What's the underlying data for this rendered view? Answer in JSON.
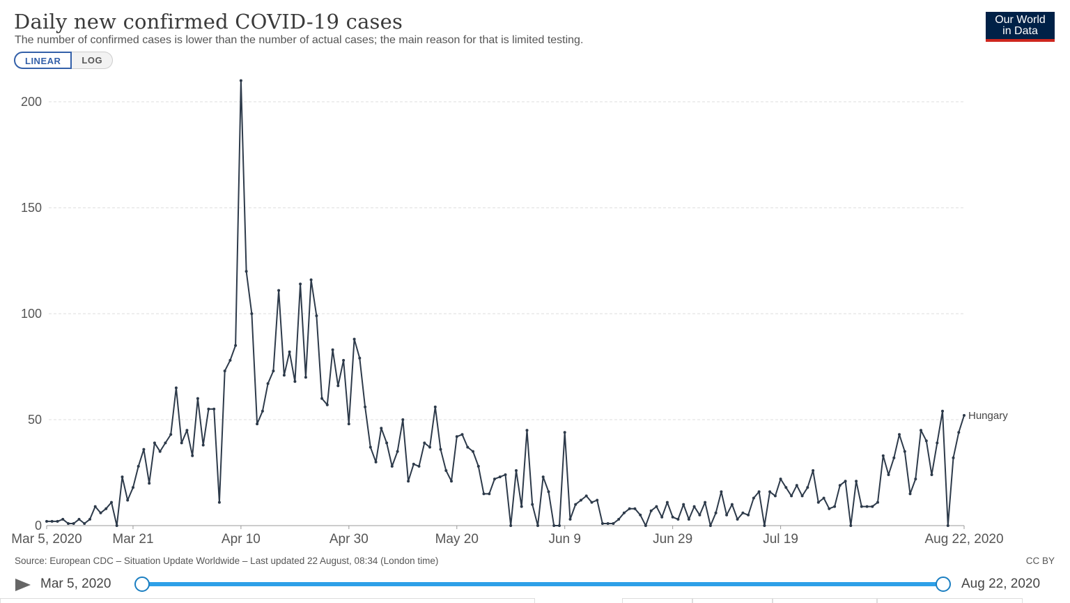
{
  "header": {
    "title": "Daily new confirmed COVID-19 cases",
    "subtitle": "The number of confirmed cases is lower than the number of actual cases; the main reason for that is limited testing.",
    "logo_line1": "Our World",
    "logo_line2": "in Data"
  },
  "scale_toggle": {
    "linear_label": "LINEAR",
    "log_label": "LOG",
    "selected": "LINEAR"
  },
  "footer": {
    "source": "Source: European CDC – Situation Update Worldwide – Last updated 22 August, 08:34 (London time)",
    "license": "CC BY"
  },
  "timeline": {
    "start_label": "Mar 5, 2020",
    "end_label": "Aug 22, 2020",
    "play_icon": "play-icon"
  },
  "colors": {
    "line": "#2d3a4a",
    "grid": "#dddddd",
    "axis_text": "#555555",
    "slider": "#2ea0e8",
    "logo_bg": "#002147",
    "logo_accent": "#ce261e"
  },
  "chart_data": {
    "type": "line",
    "title": "Daily new confirmed COVID-19 cases",
    "xlabel": "",
    "ylabel": "",
    "x_start": "2020-03-05",
    "x_end": "2020-08-22",
    "ylim": [
      0,
      210
    ],
    "yticks": [
      0,
      50,
      100,
      150,
      200
    ],
    "xtick_labels": [
      "Mar 5, 2020",
      "Mar 21",
      "Apr 10",
      "Apr 30",
      "May 20",
      "Jun 9",
      "Jun 29",
      "Jul 19",
      "Aug 22, 2020"
    ],
    "grid": "horizontal-dashed",
    "series": [
      {
        "name": "Hungary",
        "values": [
          2,
          2,
          2,
          3,
          1,
          1,
          3,
          1,
          3,
          9,
          6,
          8,
          11,
          0,
          23,
          12,
          18,
          28,
          36,
          20,
          39,
          35,
          39,
          43,
          65,
          39,
          45,
          33,
          60,
          38,
          55,
          55,
          11,
          73,
          78,
          85,
          210,
          120,
          100,
          48,
          54,
          67,
          73,
          111,
          71,
          82,
          68,
          114,
          70,
          116,
          99,
          60,
          57,
          83,
          66,
          78,
          48,
          88,
          79,
          56,
          37,
          30,
          46,
          39,
          28,
          35,
          50,
          21,
          29,
          28,
          39,
          37,
          56,
          36,
          26,
          21,
          42,
          43,
          37,
          35,
          28,
          15,
          15,
          22,
          23,
          24,
          0,
          26,
          9,
          45,
          10,
          0,
          23,
          16,
          0,
          0,
          44,
          3,
          10,
          12,
          14,
          11,
          12,
          1,
          1,
          1,
          3,
          6,
          8,
          8,
          5,
          0,
          7,
          9,
          4,
          11,
          4,
          3,
          10,
          3,
          9,
          5,
          11,
          0,
          6,
          16,
          5,
          10,
          3,
          6,
          5,
          13,
          16,
          0,
          16,
          14,
          22,
          18,
          14,
          19,
          14,
          18,
          26,
          11,
          13,
          8,
          9,
          19,
          21,
          0,
          21,
          9,
          9,
          9,
          11,
          33,
          24,
          32,
          43,
          35,
          15,
          22,
          45,
          40,
          24,
          39,
          54,
          0,
          32,
          44,
          52
        ]
      }
    ]
  }
}
